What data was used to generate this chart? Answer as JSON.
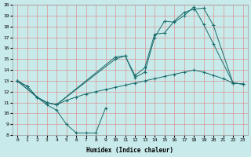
{
  "xlabel": "Humidex (Indice chaleur)",
  "bg_color": "#c8eaea",
  "line_color": "#1a6b6b",
  "grid_color": "#e08080",
  "xlim": [
    -0.5,
    23.5
  ],
  "ylim": [
    8,
    20
  ],
  "xticks": [
    0,
    1,
    2,
    3,
    4,
    5,
    6,
    7,
    8,
    9,
    10,
    11,
    12,
    13,
    14,
    15,
    16,
    17,
    18,
    19,
    20,
    21,
    22,
    23
  ],
  "yticks": [
    8,
    9,
    10,
    11,
    12,
    13,
    14,
    15,
    16,
    17,
    18,
    19,
    20
  ],
  "series": [
    {
      "x": [
        0,
        1,
        2,
        3,
        4,
        5,
        6,
        7,
        8,
        9
      ],
      "y": [
        13,
        12.5,
        11.5,
        10.8,
        10.3,
        9.0,
        8.2,
        8.2,
        8.2,
        10.5
      ]
    },
    {
      "x": [
        0,
        1,
        2,
        3,
        4,
        5,
        6,
        7,
        8,
        9,
        10,
        11,
        12,
        13,
        14,
        15,
        16,
        17,
        18,
        19,
        20,
        21,
        22,
        23
      ],
      "y": [
        13,
        12.5,
        11.5,
        11.0,
        10.8,
        11.2,
        11.5,
        11.8,
        12.0,
        12.2,
        12.4,
        12.6,
        12.8,
        13.0,
        13.2,
        13.4,
        13.6,
        13.8,
        14.0,
        13.8,
        13.5,
        13.2,
        12.8,
        12.7
      ]
    },
    {
      "x": [
        0,
        2,
        3,
        4,
        10,
        11,
        12,
        13,
        14,
        15,
        16,
        17,
        18,
        19,
        20,
        22,
        23
      ],
      "y": [
        13,
        11.5,
        11.0,
        10.8,
        15.2,
        15.3,
        13.5,
        14.2,
        17.3,
        17.4,
        18.5,
        19.3,
        19.6,
        19.7,
        18.1,
        12.8,
        12.7
      ]
    },
    {
      "x": [
        0,
        2,
        3,
        4,
        10,
        11,
        12,
        13,
        14,
        15,
        16,
        17,
        18,
        19,
        20,
        22,
        23
      ],
      "y": [
        13,
        11.5,
        11.0,
        10.8,
        15.0,
        15.3,
        13.3,
        13.8,
        17.0,
        18.5,
        18.4,
        19.0,
        19.8,
        18.2,
        16.4,
        12.8,
        12.7
      ]
    }
  ]
}
